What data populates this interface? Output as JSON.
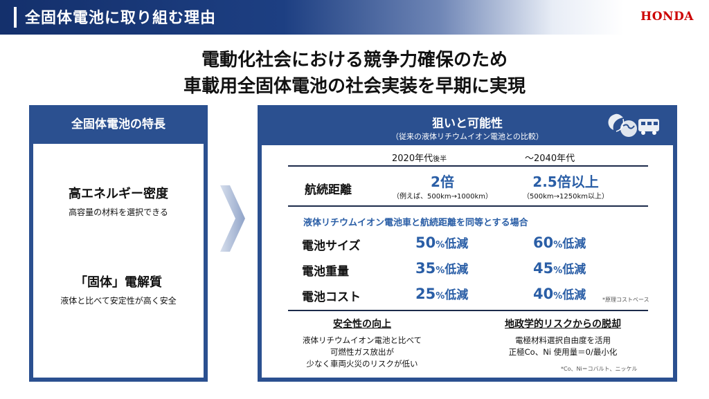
{
  "header": {
    "title": "全固体電池に取り組む理由",
    "logo": "HONDA"
  },
  "headline": {
    "line1": "電動化社会における競争力確保のため",
    "line2": "車載用全固体電池の社会実装を早期に実現"
  },
  "features": {
    "title": "全固体電池の特長",
    "items": [
      {
        "title": "高エネルギー密度",
        "sub": "高容量の材料を選択できる"
      },
      {
        "title": "「固体」電解質",
        "sub": "液体と比べて安定性が高く安全"
      }
    ]
  },
  "potential": {
    "title": "狙いと可能性",
    "subtitle": "（従来の液体リチウムイオン電池との比較）",
    "col1": "2020年代",
    "col1_suffix": "後半",
    "col2": "～2040年代",
    "range": {
      "label": "航続距離",
      "v1": "2倍",
      "v1_note": "（例えば、500km→1000km）",
      "v2": "2.5倍以上",
      "v2_note": "（500km→1250km以上）"
    },
    "condition": "液体リチウムイオン電池車と航続距離を同等とする場合",
    "rows": [
      {
        "label": "電池サイズ",
        "v1": "50",
        "v2": "60"
      },
      {
        "label": "電池重量",
        "v1": "35",
        "v2": "45"
      },
      {
        "label": "電池コスト",
        "v1": "25",
        "v2": "40"
      }
    ],
    "percent": "%",
    "reduction": "低減",
    "cost_note": "*原理コストベース",
    "safety": {
      "title": "安全性の向上",
      "lines": [
        "液体リチウムイオン電池と比べて",
        "可燃性ガス放出が",
        "少なく車両火災のリスクが低い"
      ]
    },
    "geo": {
      "title": "地政学的リスクからの脱却",
      "lines": [
        "電極材料選択自由度を活用",
        "正極Co、Ni 使用量＝0/最小化"
      ],
      "note": "*Co、Ni＝コバルト、ニッケル"
    }
  }
}
